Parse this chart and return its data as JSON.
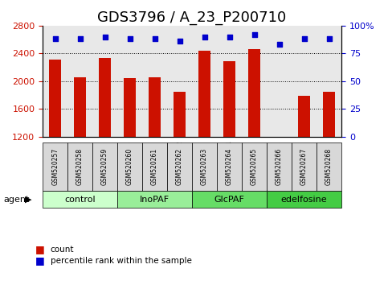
{
  "title": "GDS3796 / A_23_P200710",
  "samples": [
    "GSM520257",
    "GSM520258",
    "GSM520259",
    "GSM520260",
    "GSM520261",
    "GSM520262",
    "GSM520263",
    "GSM520264",
    "GSM520265",
    "GSM520266",
    "GSM520267",
    "GSM520268"
  ],
  "counts": [
    2310,
    2060,
    2340,
    2050,
    2060,
    1850,
    2440,
    2290,
    2460,
    1150,
    1790,
    1850
  ],
  "percentile_ranks": [
    88,
    88,
    90,
    88,
    88,
    86,
    90,
    90,
    92,
    83,
    88,
    88
  ],
  "groups": [
    {
      "label": "control",
      "color": "#ccffcc",
      "start": 0,
      "end": 3
    },
    {
      "label": "InoPAF",
      "color": "#99ee99",
      "start": 3,
      "end": 6
    },
    {
      "label": "GlcPAF",
      "color": "#66dd66",
      "start": 6,
      "end": 9
    },
    {
      "label": "edelfosine",
      "color": "#44cc44",
      "start": 9,
      "end": 12
    }
  ],
  "bar_color": "#cc1100",
  "scatter_color": "#0000cc",
  "ylim_left": [
    1200,
    2800
  ],
  "ylim_right": [
    0,
    100
  ],
  "yticks_left": [
    1200,
    1600,
    2000,
    2400,
    2800
  ],
  "yticks_right": [
    0,
    25,
    50,
    75,
    100
  ],
  "ytick_labels_right": [
    "0",
    "25",
    "50",
    "75",
    "100%"
  ],
  "grid_values": [
    1600,
    2000,
    2400
  ],
  "title_fontsize": 13,
  "tick_fontsize": 8,
  "label_fontsize": 8,
  "bar_width": 0.5
}
